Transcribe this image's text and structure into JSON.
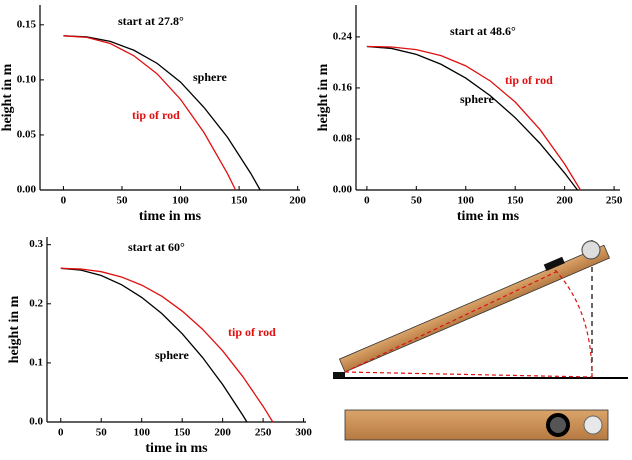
{
  "chart_data": [
    {
      "type": "line",
      "subtitle": "start at 27.8°",
      "xlabel": "time in ms",
      "ylabel": "height  in m",
      "xlim": [
        -20,
        202
      ],
      "ylim": [
        0,
        0.168
      ],
      "xticks": [
        0,
        50,
        100,
        150,
        200
      ],
      "yticks": [
        {
          "value": 0,
          "label": "0.00"
        },
        0.05,
        {
          "value": 0.1,
          "label": "0.10"
        },
        0.15
      ],
      "series": [
        {
          "name": "sphere",
          "color": "#000000",
          "x": [
            0,
            20,
            40,
            60,
            80,
            100,
            120,
            140,
            160,
            168
          ],
          "values": [
            0.14,
            0.139,
            0.135,
            0.127,
            0.115,
            0.098,
            0.075,
            0.048,
            0.015,
            0
          ]
        },
        {
          "name": "tip of rod",
          "color": "#e01010",
          "x": [
            0,
            20,
            40,
            60,
            80,
            100,
            120,
            140,
            147
          ],
          "values": [
            0.14,
            0.1386,
            0.133,
            0.122,
            0.1055,
            0.0823,
            0.0522,
            0.015,
            0
          ]
        }
      ]
    },
    {
      "type": "line",
      "subtitle": "start at 48.6°",
      "xlabel": "time in ms",
      "ylabel": "height  in m",
      "xlim": [
        -11,
        256
      ],
      "ylim": [
        0,
        0.29
      ],
      "xticks": [
        0,
        50,
        100,
        150,
        200,
        250
      ],
      "yticks": [
        {
          "value": 0,
          "label": "0.00"
        },
        0.08,
        0.16,
        0.24
      ],
      "series": [
        {
          "name": "sphere",
          "color": "#000000",
          "x": [
            0,
            25,
            50,
            75,
            100,
            125,
            150,
            175,
            200,
            213
          ],
          "values": [
            0.225,
            0.2219,
            0.2126,
            0.1971,
            0.1754,
            0.1475,
            0.1134,
            0.0731,
            0.0266,
            0
          ]
        },
        {
          "name": "tip of rod",
          "color": "#e01010",
          "x": [
            0,
            25,
            50,
            75,
            100,
            125,
            150,
            175,
            200,
            216
          ],
          "values": [
            0.225,
            0.2242,
            0.22,
            0.2106,
            0.1946,
            0.1707,
            0.1379,
            0.0949,
            0.0407,
            0
          ]
        }
      ]
    },
    {
      "type": "line",
      "subtitle": "start at 60°",
      "xlabel": "time in ms",
      "ylabel": "height  in m",
      "xlim": [
        -17,
        303
      ],
      "ylim": [
        0,
        0.313
      ],
      "xticks": [
        0,
        50,
        100,
        150,
        200,
        250,
        300
      ],
      "yticks": [
        {
          "value": 0,
          "label": "0.0"
        },
        0.1,
        0.2,
        0.3
      ],
      "series": [
        {
          "name": "sphere",
          "color": "#000000",
          "x": [
            0,
            25,
            50,
            75,
            100,
            125,
            150,
            175,
            200,
            225,
            230
          ],
          "values": [
            0.26,
            0.2569,
            0.2478,
            0.2324,
            0.2108,
            0.1833,
            0.1494,
            0.1095,
            0.0634,
            0.0112,
            0
          ]
        },
        {
          "name": "tip of rod",
          "color": "#e01010",
          "x": [
            0,
            25,
            50,
            75,
            100,
            125,
            150,
            175,
            200,
            225,
            250,
            262
          ],
          "values": [
            0.26,
            0.2588,
            0.2543,
            0.2454,
            0.2316,
            0.2126,
            0.1877,
            0.1572,
            0.1204,
            0.0767,
            0.0265,
            0
          ]
        }
      ]
    }
  ]
}
